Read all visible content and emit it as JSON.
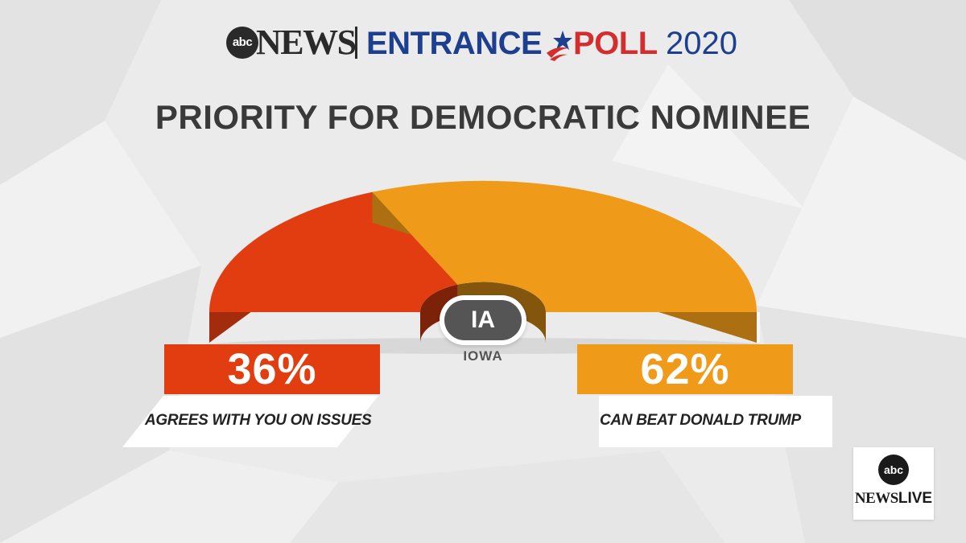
{
  "header": {
    "network_logo": "abc",
    "network_name": "NEWS",
    "poll_name_part1": "ENTRANCE",
    "poll_name_part2": "POLL",
    "poll_year": "2020",
    "logo_icon": "star-swoosh-icon"
  },
  "state": {
    "abbr": "IA",
    "name": "IOWA"
  },
  "live_badge": {
    "logo": "abc",
    "news": "NEWS",
    "live": "LIVE"
  },
  "colors": {
    "red": "#e23d10",
    "orange": "#ef9a18",
    "blue": "#1d3f8f",
    "dark": "#3a3a3a"
  },
  "chart_data": {
    "type": "pie",
    "title": "PRIORITY FOR DEMOCRATIC NOMINEE",
    "style": "semicircle-gauge",
    "slices": [
      {
        "label": "AGREES WITH YOU ON ISSUES",
        "value": 36,
        "display": "36%",
        "color": "#e23d10"
      },
      {
        "label": "CAN BEAT DONALD TRUMP",
        "value": 62,
        "display": "62%",
        "color": "#ef9a18"
      }
    ]
  }
}
